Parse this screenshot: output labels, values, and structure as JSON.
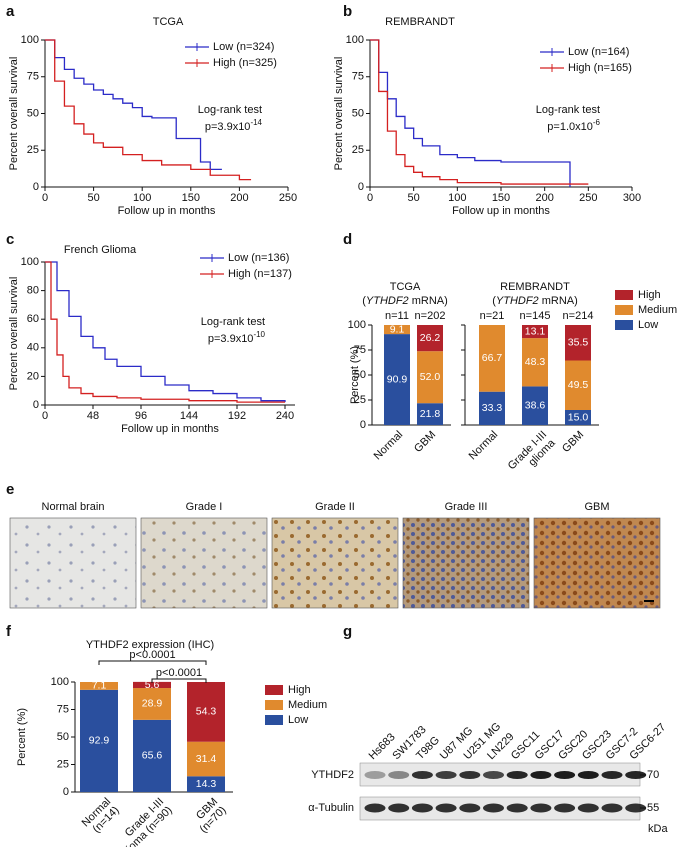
{
  "chart_data": [
    {
      "type": "survival",
      "panel": "a",
      "title": "TCGA",
      "xlabel": "Follow up in months",
      "ylabel": "Percent overall survival",
      "xlim": [
        0,
        250
      ],
      "xticks": [
        0,
        50,
        100,
        150,
        200,
        250
      ],
      "ylim": [
        0,
        100
      ],
      "yticks": [
        0,
        25,
        50,
        75,
        100
      ],
      "series": [
        {
          "name": "Low (n=324)",
          "color": "#2b2bc8",
          "x": [
            0,
            10,
            20,
            30,
            40,
            50,
            60,
            70,
            80,
            90,
            100,
            110,
            120,
            135,
            140,
            160,
            170,
            182
          ],
          "values": [
            100,
            88,
            80,
            74,
            70,
            66,
            63,
            60,
            57,
            54,
            48,
            47,
            47,
            33,
            33,
            17,
            12,
            12
          ]
        },
        {
          "name": "High (n=325)",
          "color": "#d42020",
          "x": [
            0,
            10,
            20,
            30,
            40,
            50,
            60,
            80,
            100,
            120,
            150,
            170,
            200,
            212
          ],
          "values": [
            100,
            72,
            55,
            43,
            36,
            30,
            27,
            22,
            18,
            15,
            12,
            8,
            5,
            5
          ]
        }
      ],
      "annotation": "Log-rank test",
      "pvalue": {
        "text": "p=3.9x10",
        "exp": "-14"
      }
    },
    {
      "type": "survival",
      "panel": "b",
      "title": "REMBRANDT",
      "xlabel": "Follow up in months",
      "ylabel": "Percent overall survival",
      "xlim": [
        0,
        300
      ],
      "xticks": [
        0,
        50,
        100,
        150,
        200,
        250,
        300
      ],
      "ylim": [
        0,
        100
      ],
      "yticks": [
        0,
        25,
        50,
        75,
        100
      ],
      "series": [
        {
          "name": "Low (n=164)",
          "color": "#2b2bc8",
          "x": [
            0,
            10,
            20,
            30,
            40,
            50,
            60,
            80,
            100,
            120,
            150,
            200,
            229
          ],
          "values": [
            100,
            78,
            60,
            48,
            40,
            33,
            28,
            22,
            20,
            18,
            17,
            17,
            0
          ]
        },
        {
          "name": "High (n=165)",
          "color": "#d42020",
          "x": [
            0,
            10,
            20,
            30,
            40,
            50,
            60,
            80,
            100,
            150,
            250
          ],
          "values": [
            100,
            65,
            38,
            22,
            14,
            10,
            7,
            5,
            3,
            2,
            2
          ]
        }
      ],
      "annotation": "Log-rank test",
      "pvalue": {
        "text": "p=1.0x10",
        "exp": "-6"
      }
    },
    {
      "type": "survival",
      "panel": "c",
      "title": "French Glioma",
      "xlabel": "Follow up in months",
      "ylabel": "Percent overall survival",
      "xlim": [
        0,
        250
      ],
      "xticks": [
        0,
        48,
        96,
        144,
        192,
        240
      ],
      "ylim": [
        0,
        100
      ],
      "yticks": [
        0,
        20,
        40,
        60,
        80,
        100
      ],
      "series": [
        {
          "name": "Low (n=136)",
          "color": "#2b2bc8",
          "x": [
            0,
            12,
            24,
            36,
            48,
            60,
            72,
            96,
            120,
            144,
            168,
            192,
            216,
            240
          ],
          "values": [
            100,
            80,
            62,
            48,
            40,
            32,
            27,
            20,
            14,
            10,
            8,
            5,
            3,
            2
          ]
        },
        {
          "name": "High (n=137)",
          "color": "#d42020",
          "x": [
            0,
            6,
            12,
            18,
            24,
            36,
            48,
            72,
            96,
            144,
            192,
            240
          ],
          "values": [
            100,
            60,
            35,
            20,
            12,
            8,
            6,
            5,
            4,
            3,
            2,
            2
          ]
        }
      ],
      "annotation": "Log-rank test",
      "pvalue": {
        "text": "p=3.9x10",
        "exp": "-10"
      }
    },
    {
      "type": "stacked_bar",
      "panel": "d",
      "title": "TCGA",
      "subtitle_parts": [
        "(",
        "YTHDF2",
        " mRNA)"
      ],
      "ylabel": "Percent (%)",
      "categories": [
        [
          "Normal"
        ],
        [
          "GBM"
        ]
      ],
      "n_labels": [
        "n=11",
        "n=202"
      ],
      "ylim": [
        0,
        100
      ],
      "yticks": [
        0,
        25,
        50,
        75,
        100
      ],
      "series": [
        {
          "name": "Low",
          "color": "#2a4f9e",
          "values": [
            90.9,
            21.8
          ],
          "value_labels": [
            "90.9",
            "21.8"
          ]
        },
        {
          "name": "Medium",
          "color": "#e08a2e",
          "values": [
            9.1,
            52.0
          ],
          "value_labels": [
            "9.1",
            "52.0"
          ]
        },
        {
          "name": "High",
          "color": "#b3232b",
          "values": [
            0,
            26.2
          ],
          "value_labels": [
            null,
            "26.2"
          ]
        }
      ]
    },
    {
      "type": "stacked_bar",
      "title": "REMBRANDT",
      "subtitle_parts": [
        "(",
        "YTHDF2",
        " mRNA)"
      ],
      "categories": [
        [
          "Normal"
        ],
        [
          "Grade I-III",
          "glioma"
        ],
        [
          "GBM"
        ]
      ],
      "n_labels": [
        "n=21",
        "n=145",
        "n=214"
      ],
      "ylim": [
        0,
        100
      ],
      "yticks": [
        0,
        25,
        50,
        75,
        100
      ],
      "legend": "right",
      "series": [
        {
          "name": "Low",
          "color": "#2a4f9e",
          "values": [
            33.3,
            38.6,
            15.0
          ],
          "value_labels": [
            "33.3",
            "38.6",
            "15.0"
          ]
        },
        {
          "name": "Medium",
          "color": "#e08a2e",
          "values": [
            66.7,
            48.3,
            49.5
          ],
          "value_labels": [
            "66.7",
            "48.3",
            "49.5"
          ]
        },
        {
          "name": "High",
          "color": "#b3232b",
          "values": [
            0,
            13.1,
            35.5
          ],
          "value_labels": [
            null,
            "13.1",
            "35.5"
          ]
        }
      ]
    },
    {
      "type": "stacked_bar",
      "panel": "f",
      "title": "YTHDF2 expression (IHC)",
      "ylabel": "Percent (%)",
      "categories": [
        [
          "Normal",
          "(n=14)"
        ],
        [
          "Grade I-III",
          "glioma (n=90)"
        ],
        [
          "GBM",
          "(n=70)"
        ]
      ],
      "ylim": [
        0,
        100
      ],
      "yticks": [
        0,
        25,
        50,
        75,
        100
      ],
      "legend": "right",
      "comparisons": [
        {
          "label": "p<0.0001",
          "from": 0,
          "to": 2
        },
        {
          "label": "p<0.0001",
          "from": 1,
          "to": 2
        }
      ],
      "series": [
        {
          "name": "Low",
          "color": "#2a4f9e",
          "values": [
            92.9,
            65.6,
            14.3
          ],
          "value_labels": [
            "92.9",
            "65.6",
            "14.3"
          ]
        },
        {
          "name": "Medium",
          "color": "#e08a2e",
          "values": [
            7.1,
            28.9,
            31.4
          ],
          "value_labels": [
            "7.1",
            "28.9",
            "31.4"
          ]
        },
        {
          "name": "High",
          "color": "#b3232b",
          "values": [
            0,
            5.6,
            54.3
          ],
          "value_labels": [
            null,
            "5.6",
            "54.3"
          ]
        }
      ]
    }
  ],
  "ihc": {
    "panel": "e",
    "labels": [
      "Normal brain",
      "Grade I",
      "Grade II",
      "Grade III",
      "GBM"
    ]
  },
  "western": {
    "panel": "g",
    "lanes": [
      "Hs683",
      "SW1783",
      "T98G",
      "U87 MG",
      "U251 MG",
      "LN229",
      "GSC11",
      "GSC17",
      "GSC20",
      "GSC23",
      "GSC7-2",
      "GSC6-27"
    ],
    "rows": [
      "YTHDF2",
      "α-Tubulin"
    ],
    "markers": [
      "70",
      "55"
    ],
    "unit": "kDa"
  }
}
